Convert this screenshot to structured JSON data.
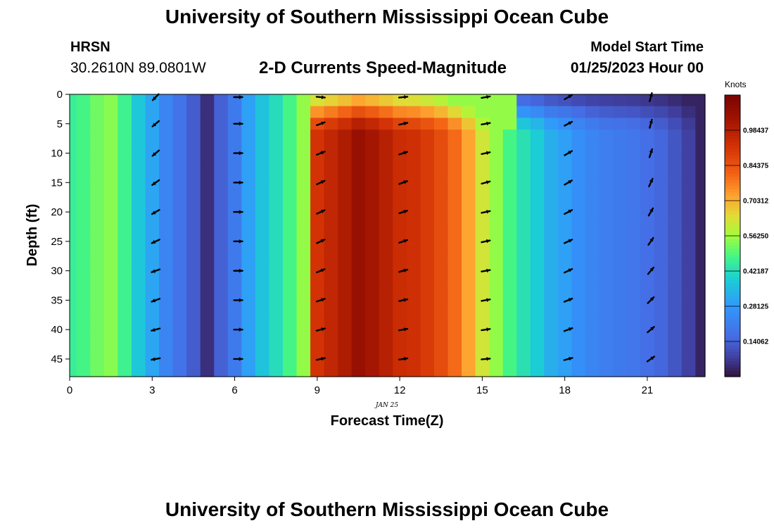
{
  "header": {
    "title": "University of Southern Mississippi Ocean Cube",
    "station": "HRSN",
    "coords": "30.2610N  89.0801W",
    "chart_title": "2-D Currents Speed-Magnitude",
    "model_label": "Model Start Time",
    "model_time": "01/25/2023 Hour 00"
  },
  "footer": {
    "title": "University of Southern Mississippi Ocean Cube"
  },
  "colors": {
    "background": "#ffffff",
    "text": "#000000",
    "arrow": "#000000"
  },
  "chart_data": {
    "type": "heatmap",
    "colormap": "turbo",
    "xlabel": "Forecast Time(Z)",
    "ylabel": "Depth (ft)",
    "x_date_label": "JAN 25",
    "xlim": [
      0,
      23.1
    ],
    "ylim": [
      48,
      0
    ],
    "x_ticks": [
      0,
      3,
      6,
      9,
      12,
      15,
      18,
      21
    ],
    "y_ticks": [
      0,
      5,
      10,
      15,
      20,
      25,
      30,
      35,
      40,
      45
    ],
    "colorbar": {
      "title": "Knots",
      "range": [
        0,
        1.125
      ],
      "ticks": [
        0.140625,
        0.28125,
        0.421875,
        0.5625,
        0.703125,
        0.84375,
        0.984375
      ],
      "tick_labels": [
        "0.14062",
        "0.28125",
        "0.42187",
        "0.56250",
        "0.70312",
        "0.84375",
        "0.98437"
      ]
    },
    "hours": [
      0,
      0.5,
      1,
      1.5,
      2,
      2.5,
      3,
      3.5,
      4,
      4.5,
      5,
      5.5,
      6,
      6.5,
      7,
      7.5,
      8,
      8.5,
      9,
      9.5,
      10,
      10.5,
      11,
      11.5,
      12,
      12.5,
      13,
      13.5,
      14,
      14.5,
      15,
      15.5,
      16,
      16.5,
      17,
      17.5,
      18,
      18.5,
      19,
      19.5,
      20,
      20.5,
      21,
      21.5,
      22,
      22.5,
      23
    ],
    "speed_at_depth_knots": [
      0.46,
      0.48,
      0.52,
      0.54,
      0.47,
      0.38,
      0.31,
      0.23,
      0.18,
      0.13,
      0.05,
      0.14,
      0.2,
      0.3,
      0.37,
      0.42,
      0.48,
      0.55,
      0.92,
      0.96,
      1.0,
      1.05,
      1.02,
      0.98,
      0.94,
      0.93,
      0.9,
      0.86,
      0.8,
      0.72,
      0.62,
      0.55,
      0.48,
      0.43,
      0.39,
      0.33,
      0.3,
      0.26,
      0.23,
      0.21,
      0.2,
      0.19,
      0.17,
      0.15,
      0.12,
      0.08,
      0.03
    ],
    "arrows": {
      "hours": [
        3,
        6,
        9,
        12,
        15,
        18,
        21
      ],
      "depths": [
        0,
        5,
        10,
        15,
        20,
        25,
        30,
        35,
        40,
        45
      ],
      "direction_deg": [
        [
          225,
          90,
          95,
          85,
          80,
          60,
          15
        ],
        [
          230,
          90,
          70,
          78,
          80,
          62,
          15
        ],
        [
          230,
          90,
          68,
          72,
          78,
          60,
          18
        ],
        [
          235,
          90,
          65,
          70,
          75,
          60,
          25
        ],
        [
          240,
          90,
          65,
          72,
          78,
          62,
          30
        ],
        [
          245,
          90,
          65,
          72,
          78,
          65,
          35
        ],
        [
          250,
          90,
          68,
          75,
          80,
          65,
          40
        ],
        [
          250,
          90,
          72,
          78,
          80,
          68,
          45
        ],
        [
          255,
          90,
          75,
          80,
          82,
          70,
          50
        ],
        [
          260,
          90,
          78,
          82,
          85,
          75,
          55
        ]
      ]
    }
  }
}
